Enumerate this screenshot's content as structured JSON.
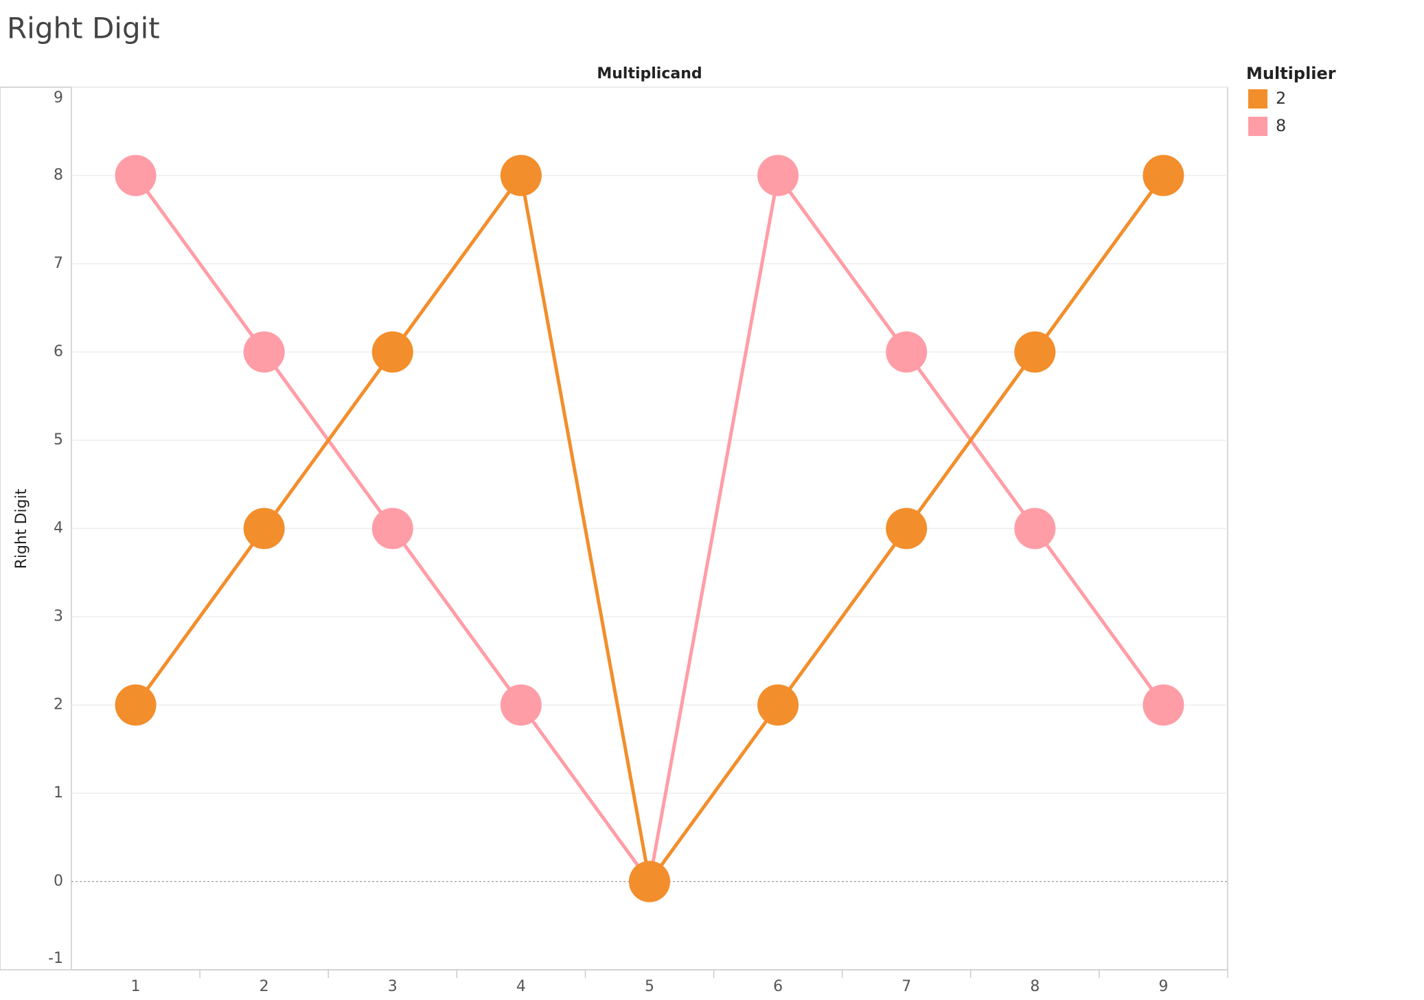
{
  "chart_data": {
    "type": "line",
    "title": "Right Digit",
    "x_label": "Multiplicand",
    "y_label": "Right Digit",
    "legend_title": "Multiplier",
    "categories": [
      "1",
      "2",
      "3",
      "4",
      "5",
      "6",
      "7",
      "8",
      "9"
    ],
    "series": [
      {
        "name": "2",
        "color": "#f28e2b",
        "values": [
          2,
          4,
          6,
          8,
          0,
          2,
          4,
          6,
          8
        ]
      },
      {
        "name": "8",
        "color": "#ff9da7",
        "values": [
          8,
          6,
          4,
          2,
          0,
          8,
          6,
          4,
          2
        ]
      }
    ],
    "ylim": [
      -1,
      9
    ],
    "yticks": [
      -1,
      0,
      1,
      2,
      3,
      4,
      5,
      6,
      7,
      8,
      9
    ],
    "grid": true,
    "legend": "right"
  }
}
